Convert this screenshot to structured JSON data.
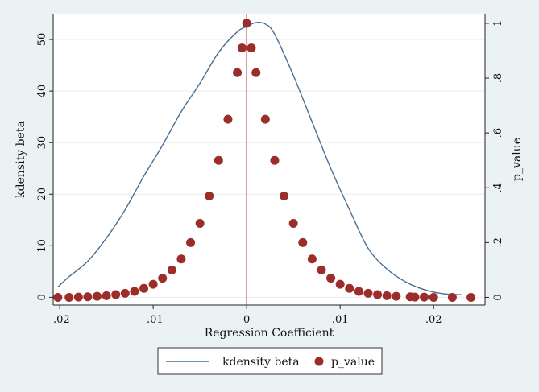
{
  "chart_data": {
    "type": "line+scatter",
    "xlabel": "Regression Coefficient",
    "y_left_label": "kdensity beta",
    "y_right_label": "p_value",
    "x_ticks": [
      "-.02",
      "-.01",
      "0",
      ".01",
      ".02"
    ],
    "x_tick_values": [
      -0.02,
      -0.01,
      0,
      0.01,
      0.02
    ],
    "y_left_ticks": [
      "0",
      "10",
      "20",
      "30",
      "40",
      "50"
    ],
    "y_left_tick_values": [
      0,
      10,
      20,
      30,
      40,
      50
    ],
    "y_right_ticks": [
      "0",
      ".2",
      ".4",
      ".6",
      ".8",
      "1"
    ],
    "y_right_tick_values": [
      0,
      0.2,
      0.4,
      0.6,
      0.8,
      1
    ],
    "xlim": [
      -0.0207,
      0.0255
    ],
    "y_left_lim": [
      -1.5,
      55
    ],
    "y_right_lim": [
      -0.028,
      1.035
    ],
    "vline_x": 0,
    "grid": "horizontal",
    "legend_position": "bottom",
    "series": [
      {
        "name": "kdensity beta",
        "type": "line",
        "axis": "left",
        "color": "#4a6f93",
        "x": [
          -0.0202,
          -0.019,
          -0.017,
          -0.015,
          -0.013,
          -0.011,
          -0.009,
          -0.007,
          -0.005,
          -0.003,
          -0.001,
          0.0,
          0.001,
          0.002,
          0.003,
          0.005,
          0.007,
          0.009,
          0.011,
          0.013,
          0.015,
          0.017,
          0.019,
          0.021,
          0.023
        ],
        "values": [
          2.0,
          4.0,
          7.0,
          11.5,
          17.0,
          23.5,
          29.5,
          36.0,
          41.5,
          47.5,
          51.5,
          52.5,
          53.3,
          53.0,
          51.0,
          43.0,
          34.0,
          25.0,
          17.0,
          9.5,
          5.5,
          3.0,
          1.5,
          0.7,
          0.5
        ]
      },
      {
        "name": "p_value",
        "type": "scatter",
        "axis": "right",
        "color": "#9b2d2b",
        "x": [
          -0.0202,
          -0.019,
          -0.018,
          -0.017,
          -0.016,
          -0.015,
          -0.014,
          -0.013,
          -0.012,
          -0.011,
          -0.01,
          -0.009,
          -0.008,
          -0.007,
          -0.006,
          -0.005,
          -0.004,
          -0.003,
          -0.002,
          -0.001,
          -0.0005,
          0.0,
          0.0005,
          0.001,
          0.002,
          0.003,
          0.004,
          0.005,
          0.006,
          0.007,
          0.008,
          0.009,
          0.01,
          0.011,
          0.012,
          0.013,
          0.014,
          0.015,
          0.016,
          0.0175,
          0.018,
          0.019,
          0.02,
          0.022,
          0.024
        ],
        "values": [
          0.0,
          0.0,
          0.001,
          0.002,
          0.004,
          0.006,
          0.01,
          0.015,
          0.022,
          0.033,
          0.048,
          0.07,
          0.1,
          0.14,
          0.2,
          0.27,
          0.37,
          0.5,
          0.65,
          0.82,
          0.91,
          1.0,
          0.91,
          0.82,
          0.65,
          0.5,
          0.37,
          0.27,
          0.2,
          0.14,
          0.1,
          0.07,
          0.048,
          0.033,
          0.022,
          0.015,
          0.01,
          0.006,
          0.004,
          0.002,
          0.001,
          0.001,
          0.0,
          0.0,
          0.0
        ]
      }
    ]
  }
}
